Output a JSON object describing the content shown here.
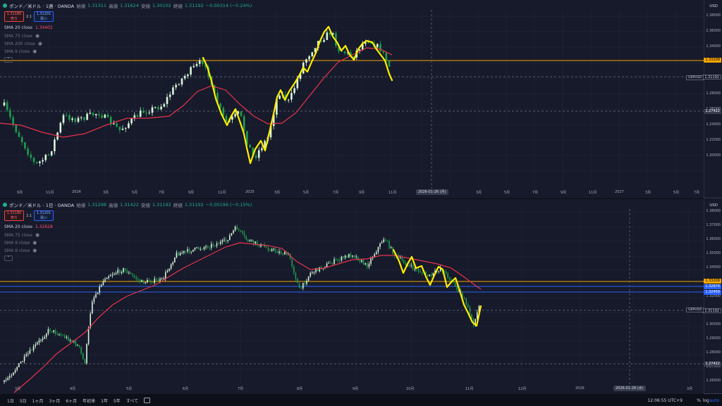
{
  "pane1": {
    "symbol": "ポンド／米ドル · 1週 · OANDA",
    "ohlc": [
      {
        "k": "始値",
        "v": "1.31311"
      },
      {
        "k": "高値",
        "v": "1.31624"
      },
      {
        "k": "安値",
        "v": "1.30102"
      },
      {
        "k": "終値",
        "v": "1.31192"
      }
    ],
    "change": "−0.00314 (−0.24%)",
    "sell": {
      "price": "1.31180",
      "label": "売り"
    },
    "buy": {
      "price": "1.31201",
      "label": "買い"
    },
    "spread": "2.1",
    "indicators": [
      {
        "name": "SMA 20 close",
        "value": "1.34402",
        "dim": false
      },
      {
        "name": "SMA 75 close",
        "value": "",
        "dim": true
      },
      {
        "name": "SMA 200 close",
        "value": "",
        "dim": true
      },
      {
        "name": "SMA 9 close",
        "value": "",
        "dim": true
      }
    ],
    "currency": "USD",
    "y_ticks": [
      "1.38000",
      "1.36000",
      "1.34000",
      "1.32000",
      "1.30000",
      "1.28000",
      "1.26000",
      "1.24000",
      "1.22000",
      "1.20000"
    ],
    "x_ticks": [
      "9月",
      "11月",
      "2024",
      "3月",
      "5月",
      "7月",
      "9月",
      "11月",
      "2025",
      "3月",
      "5月",
      "7月",
      "9月",
      "11月",
      "3月",
      "5月",
      "7月",
      "9月",
      "11月",
      "2027",
      "3月",
      "5月",
      "7月"
    ],
    "date_highlight": "2026-01-26 (月)",
    "price_badges": [
      {
        "text": "1.33209",
        "color": "#f7a600",
        "fg": "#000000"
      },
      {
        "text": "1.31192",
        "color": "#161a2b",
        "fg": "#c8ccd6"
      },
      {
        "text": "1.27422",
        "color": "#363b4e",
        "fg": "#ffffff"
      }
    ],
    "sym_tag": "GBPUSD"
  },
  "pane2": {
    "symbol": "ポンド／米ドル · 1日 · OANDA",
    "ohlc": [
      {
        "k": "始値",
        "v": "1.31298"
      },
      {
        "k": "高値",
        "v": "1.31422"
      },
      {
        "k": "安値",
        "v": "1.31192"
      },
      {
        "k": "終値",
        "v": "1.31192"
      }
    ],
    "change": "−0.00196 (−0.15%)",
    "sell": {
      "price": "1.31180",
      "label": "売り"
    },
    "buy": {
      "price": "1.31201",
      "label": "買い"
    },
    "spread": "2.1",
    "indicators": [
      {
        "name": "SMA 20 close",
        "value": "1.32628",
        "dim": false
      },
      {
        "name": "SMA 75 close",
        "value": "",
        "dim": true
      },
      {
        "name": "SMA 9 close",
        "value": "",
        "dim": true
      },
      {
        "name": "SMA 9 close",
        "value": "",
        "dim": true
      }
    ],
    "currency": "USD",
    "y_ticks": [
      "1.38000",
      "1.37000",
      "1.36000",
      "1.35000",
      "1.34000",
      "1.33000",
      "1.32000",
      "1.31000",
      "1.30000",
      "1.29000",
      "1.28000",
      "1.27000",
      "1.26000"
    ],
    "x_ticks": [
      "3月",
      "4月",
      "5月",
      "6月",
      "7月",
      "8月",
      "9月",
      "10月",
      "11月",
      "12月",
      "2026",
      "3月"
    ],
    "date_highlight": "2026-01-28 (水)",
    "price_badges": [
      {
        "text": "1.33209",
        "color": "#f7a600",
        "fg": "#000000"
      },
      {
        "text": "1.32874",
        "color": "#2962ff",
        "fg": "#ffffff"
      },
      {
        "text": "1.32459",
        "color": "#2962ff",
        "fg": "#ffffff"
      },
      {
        "text": "1.31192",
        "color": "#161a2b",
        "fg": "#c8ccd6"
      },
      {
        "text": "1.27422",
        "color": "#363b4e",
        "fg": "#ffffff"
      }
    ],
    "sym_tag": "GBPUSD"
  },
  "bottom": {
    "timeframes": [
      "1日",
      "5日",
      "1ヶ月",
      "3ヶ月",
      "6ヶ月",
      "年初来",
      "1年",
      "5年",
      "すべて"
    ],
    "clock": "12:06:55 UTC+9",
    "pct": "%",
    "log": "log",
    "auto": "auto"
  },
  "colors": {
    "bg": "#161a2b",
    "sma": "#e8334a",
    "drawing": "#ffee00",
    "up": "#c8f0c8",
    "down": "#1e9e4a"
  }
}
